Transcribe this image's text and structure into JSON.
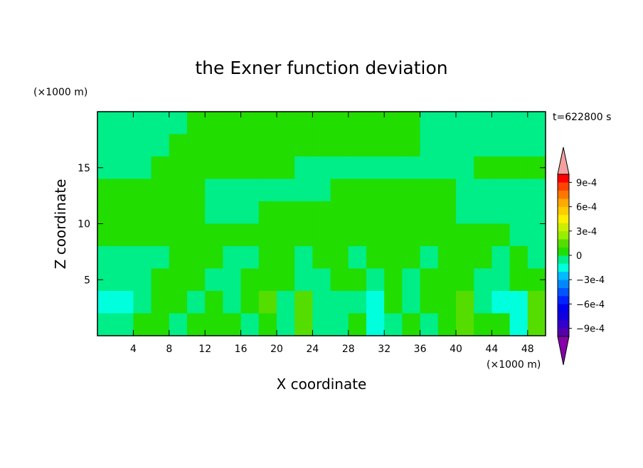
{
  "chart_data": {
    "type": "contour",
    "title": "the Exner function deviation",
    "xlabel": "X coordinate",
    "ylabel": "Z coordinate",
    "x_unit": "(×1000 m)",
    "y_unit": "(×1000 m)",
    "time_label": "t=622800 s",
    "xlim": [
      0,
      50
    ],
    "ylim": [
      0,
      20
    ],
    "xticks": [
      4,
      8,
      12,
      16,
      20,
      24,
      28,
      32,
      36,
      40,
      44,
      48
    ],
    "yticks": [
      5,
      10,
      15
    ],
    "x": [
      1,
      3,
      5,
      7,
      9,
      11,
      13,
      15,
      17,
      19,
      21,
      23,
      25,
      27,
      29,
      31,
      33,
      35,
      37,
      39,
      41,
      43,
      45,
      47,
      49
    ],
    "y": [
      19,
      17,
      15,
      13,
      11,
      9,
      7,
      5,
      3,
      1
    ],
    "z": [
      [
        -5e-05,
        -5e-05,
        -5e-05,
        -5e-05,
        -5e-05,
        5e-05,
        5e-05,
        5e-05,
        5e-05,
        5e-05,
        5e-05,
        5e-05,
        5e-05,
        5e-05,
        5e-05,
        5e-05,
        5e-05,
        5e-05,
        -5e-05,
        -5e-05,
        -5e-05,
        -5e-05,
        -5e-05,
        -5e-05,
        -5e-05
      ],
      [
        -5e-05,
        -5e-05,
        -5e-05,
        -5e-05,
        5e-05,
        5e-05,
        5e-05,
        5e-05,
        5e-05,
        5e-05,
        5e-05,
        5e-05,
        5e-05,
        5e-05,
        5e-05,
        5e-05,
        5e-05,
        5e-05,
        -5e-05,
        -5e-05,
        -5e-05,
        -5e-05,
        -5e-05,
        -5e-05,
        -5e-05
      ],
      [
        -5e-05,
        -5e-05,
        -5e-05,
        5e-05,
        5e-05,
        5e-05,
        5e-05,
        5e-05,
        5e-05,
        5e-05,
        5e-05,
        -5e-05,
        -5e-05,
        -5e-05,
        -5e-05,
        -5e-05,
        -5e-05,
        -5e-05,
        -5e-05,
        -5e-05,
        -5e-05,
        5e-05,
        5e-05,
        5e-05,
        5e-05
      ],
      [
        5e-05,
        5e-05,
        5e-05,
        5e-05,
        5e-05,
        5e-05,
        -5e-05,
        -5e-05,
        -5e-05,
        -5e-05,
        -5e-05,
        -5e-05,
        -5e-05,
        5e-05,
        5e-05,
        5e-05,
        5e-05,
        5e-05,
        5e-05,
        5e-05,
        -5e-05,
        -5e-05,
        -5e-05,
        -5e-05,
        -5e-05
      ],
      [
        5e-05,
        5e-05,
        5e-05,
        5e-05,
        5e-05,
        5e-05,
        -5e-05,
        -5e-05,
        -5e-05,
        5e-05,
        5e-05,
        5e-05,
        5e-05,
        5e-05,
        5e-05,
        5e-05,
        5e-05,
        5e-05,
        5e-05,
        5e-05,
        -5e-05,
        -5e-05,
        -5e-05,
        -5e-05,
        -5e-05
      ],
      [
        5e-05,
        5e-05,
        5e-05,
        5e-05,
        5e-05,
        5e-05,
        5e-05,
        5e-05,
        5e-05,
        5e-05,
        5e-05,
        5e-05,
        5e-05,
        5e-05,
        5e-05,
        5e-05,
        5e-05,
        5e-05,
        5e-05,
        5e-05,
        5e-05,
        5e-05,
        5e-05,
        -5e-05,
        -5e-05
      ],
      [
        -5e-05,
        -5e-05,
        -5e-05,
        -5e-05,
        5e-05,
        5e-05,
        5e-05,
        -5e-05,
        -5e-05,
        5e-05,
        5e-05,
        -5e-05,
        5e-05,
        5e-05,
        -5e-05,
        5e-05,
        5e-05,
        5e-05,
        -5e-05,
        5e-05,
        5e-05,
        5e-05,
        -5e-05,
        5e-05,
        -5e-05
      ],
      [
        -5e-05,
        -5e-05,
        -5e-05,
        5e-05,
        5e-05,
        5e-05,
        -5e-05,
        -5e-05,
        5e-05,
        5e-05,
        5e-05,
        -5e-05,
        -5e-05,
        5e-05,
        5e-05,
        -5e-05,
        5e-05,
        -5e-05,
        5e-05,
        5e-05,
        5e-05,
        -5e-05,
        -5e-05,
        5e-05,
        5e-05
      ],
      [
        -0.00015,
        -0.00015,
        -5e-05,
        5e-05,
        5e-05,
        -5e-05,
        5e-05,
        -5e-05,
        5e-05,
        0.00015,
        -5e-05,
        0.00015,
        -5e-05,
        -5e-05,
        -5e-05,
        -0.00015,
        5e-05,
        -5e-05,
        5e-05,
        5e-05,
        0.00015,
        -5e-05,
        -0.00015,
        -0.00015,
        0.00015
      ],
      [
        -5e-05,
        -5e-05,
        5e-05,
        5e-05,
        -5e-05,
        5e-05,
        5e-05,
        5e-05,
        -5e-05,
        5e-05,
        -5e-05,
        0.00015,
        -5e-05,
        -5e-05,
        5e-05,
        -0.00015,
        -5e-05,
        5e-05,
        -5e-05,
        5e-05,
        0.00015,
        5e-05,
        5e-05,
        -0.00015,
        0.00015
      ]
    ],
    "levels": [
      -0.001,
      -0.0009,
      -0.0008,
      -0.0007,
      -0.0006,
      -0.0005,
      -0.0004,
      -0.0003,
      -0.0002,
      -0.0001,
      0,
      0.0001,
      0.0002,
      0.0003,
      0.0004,
      0.0005,
      0.0006,
      0.0007,
      0.0008,
      0.0009,
      0.001
    ],
    "colors": [
      "#5500aa",
      "#3300cc",
      "#1100dd",
      "#0000ee",
      "#0022ff",
      "#0055ff",
      "#0088ff",
      "#00bbff",
      "#00ffdd",
      "#00ee88",
      "#22dd00",
      "#55dd00",
      "#99ee00",
      "#ccee00",
      "#ffee00",
      "#ffcc00",
      "#ffaa00",
      "#ff7700",
      "#ff4400",
      "#ff0000"
    ],
    "extend_colors": [
      "#8800aa",
      "#f4a0a0"
    ],
    "cbar_ticks": [
      {
        "value": 0.0009,
        "label": "9e-4"
      },
      {
        "value": 0.0006,
        "label": "6e-4"
      },
      {
        "value": 0.0003,
        "label": "3e-4"
      },
      0,
      {
        "value": -0.0003,
        "label": "−3e-4"
      },
      {
        "value": -0.0006,
        "label": "−6e-4"
      },
      {
        "value": -0.0009,
        "label": "−9e-4"
      }
    ]
  }
}
